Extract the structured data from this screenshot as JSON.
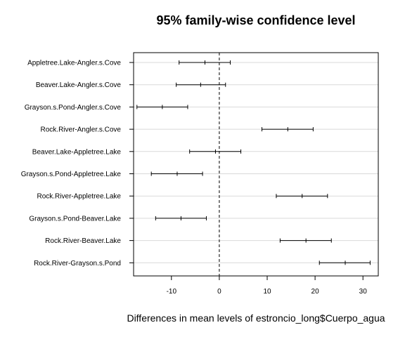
{
  "chart_data": {
    "type": "interval",
    "title": "95% family-wise confidence level",
    "xlabel": "Differences in mean levels of estroncio_long$Cuerpo_agua",
    "ylabel": "",
    "xlim": [
      -17.9,
      33.2
    ],
    "xticks": [
      -10,
      0,
      10,
      20,
      30
    ],
    "xtick_labels": [
      "-10",
      "0",
      "10",
      "20",
      "30"
    ],
    "reference_line": 0,
    "grid": "horizontal",
    "categories": [
      "Appletree.Lake-Angler.s.Cove",
      "Beaver.Lake-Angler.s.Cove",
      "Grayson.s.Pond-Angler.s.Cove",
      "Rock.River-Angler.s.Cove",
      "Beaver.Lake-Appletree.Lake",
      "Grayson.s.Pond-Appletree.Lake",
      "Rock.River-Appletree.Lake",
      "Grayson.s.Pond-Beaver.Lake",
      "Rock.River-Beaver.Lake",
      "Rock.River-Grayson.s.Pond"
    ],
    "series": [
      {
        "lower": [
          -8.4,
          -9.0,
          -17.2,
          8.9,
          -6.2,
          -14.2,
          11.9,
          -13.3,
          12.7,
          20.9
        ],
        "estimate": [
          -3.0,
          -3.9,
          -11.9,
          14.3,
          -0.8,
          -8.8,
          17.3,
          -8.0,
          18.1,
          26.3
        ],
        "upper": [
          2.3,
          1.3,
          -6.6,
          19.6,
          4.5,
          -3.5,
          22.6,
          -2.7,
          23.4,
          31.5
        ]
      }
    ]
  }
}
